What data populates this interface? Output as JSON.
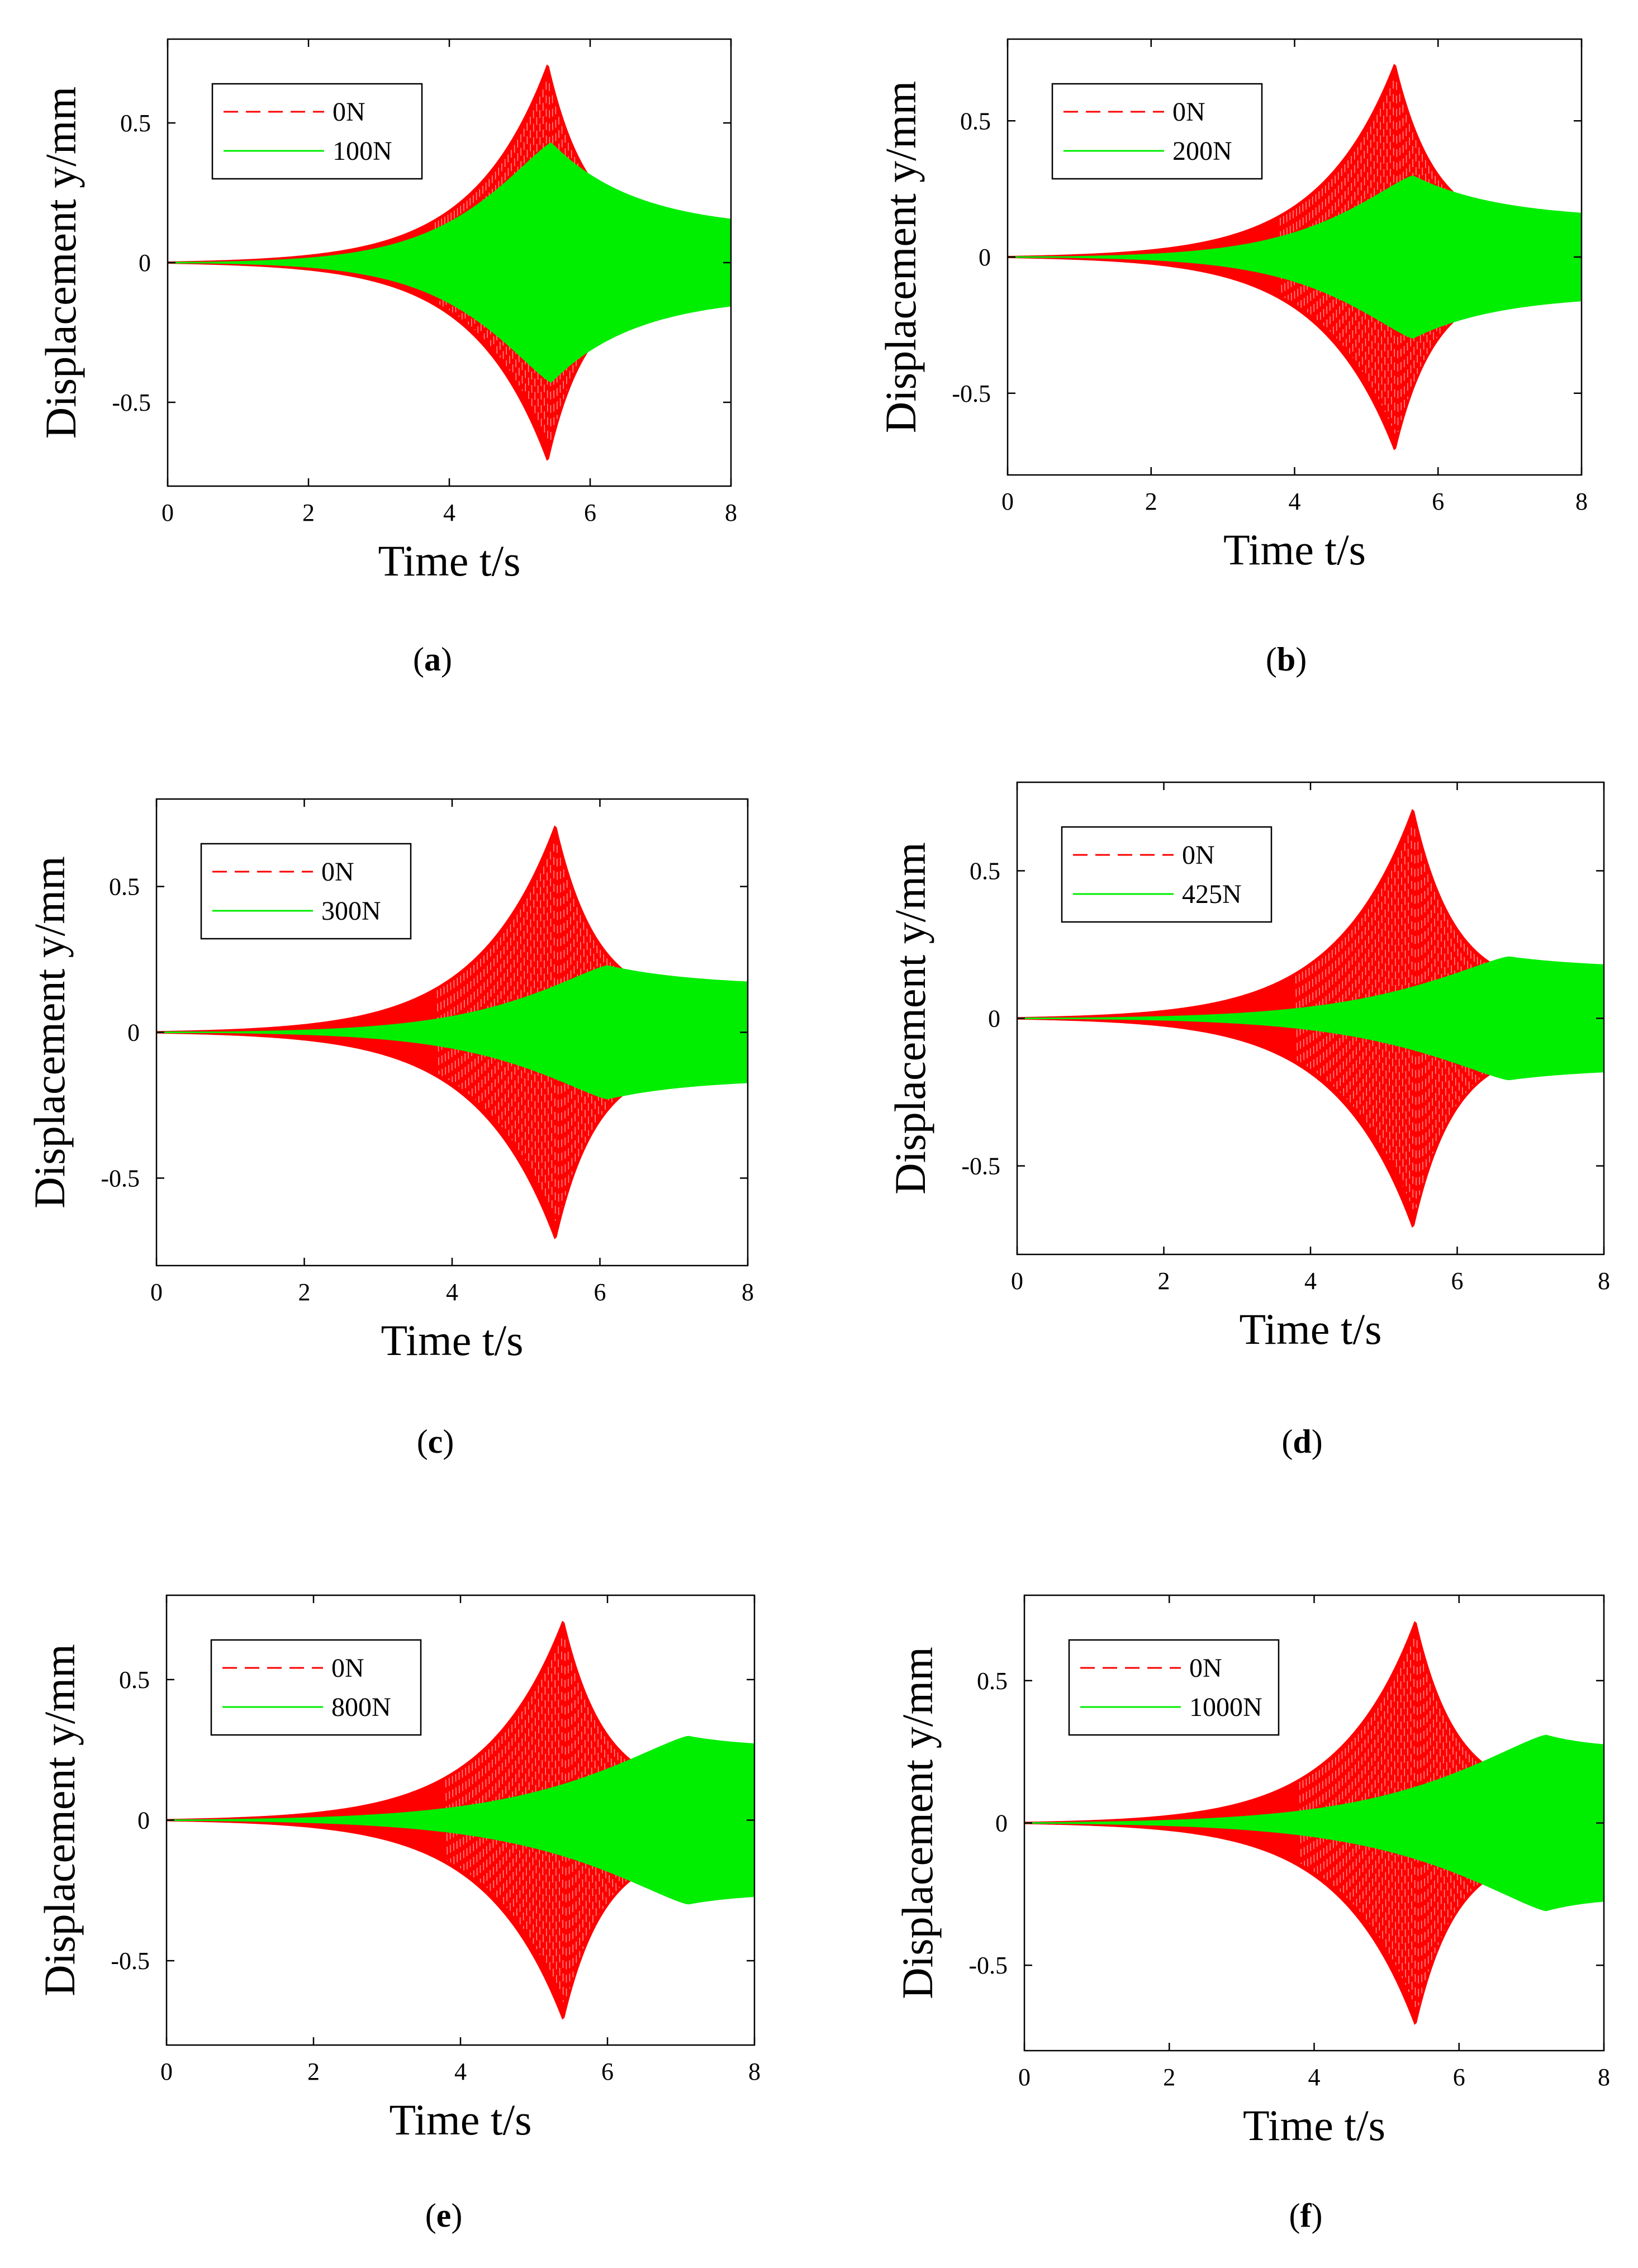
{
  "figure": {
    "panels": [
      {
        "caption_letter": "a",
        "caption_open": "(",
        "caption_close": ")"
      },
      {
        "caption_letter": "b",
        "caption_open": "(",
        "caption_close": ")"
      },
      {
        "caption_letter": "c",
        "caption_open": "(",
        "caption_close": ")"
      },
      {
        "caption_letter": "d",
        "caption_open": "(",
        "caption_close": ")"
      },
      {
        "caption_letter": "e",
        "caption_open": "(",
        "caption_close": ")"
      },
      {
        "caption_letter": "f",
        "caption_open": "(",
        "caption_close": ")"
      }
    ]
  },
  "colors": {
    "red": "#ff0000",
    "green": "#00ee00",
    "axis": "#000000"
  },
  "chart_data": [
    {
      "type": "line",
      "panel": "a",
      "xlabel": "Time t/s",
      "ylabel": "Displacement y/mm",
      "xlim": [
        0,
        8
      ],
      "ylim": [
        -0.8,
        0.8
      ],
      "xticks": [
        "0",
        "2",
        "4",
        "6",
        "8"
      ],
      "yticks": [
        "-0.5",
        "0",
        "0.5"
      ],
      "legend_position": "top-left",
      "series": [
        {
          "name": "0N",
          "style": "dashed",
          "color": "red",
          "peak_time": 5.4,
          "peak_amplitude": 0.72,
          "end_amplitude": 0.1
        },
        {
          "name": "100N",
          "style": "solid",
          "color": "green",
          "peak_time": 5.45,
          "peak_amplitude": 0.43,
          "end_amplitude": 0.12
        }
      ]
    },
    {
      "type": "line",
      "panel": "b",
      "xlabel": "Time t/s",
      "ylabel": "Displacement y/mm",
      "xlim": [
        0,
        8
      ],
      "ylim": [
        -0.8,
        0.8
      ],
      "xticks": [
        "0",
        "2",
        "4",
        "6",
        "8"
      ],
      "yticks": [
        "-0.5",
        "0",
        "0.5"
      ],
      "legend_position": "top-left",
      "series": [
        {
          "name": "0N",
          "style": "dashed",
          "color": "red",
          "peak_time": 5.4,
          "peak_amplitude": 0.72,
          "end_amplitude": 0.1
        },
        {
          "name": "200N",
          "style": "solid",
          "color": "green",
          "peak_time": 5.65,
          "peak_amplitude": 0.3,
          "end_amplitude": 0.14
        }
      ]
    },
    {
      "type": "line",
      "panel": "c",
      "xlabel": "Time t/s",
      "ylabel": "Displacement y/mm",
      "xlim": [
        0,
        8
      ],
      "ylim": [
        -0.8,
        0.8
      ],
      "xticks": [
        "0",
        "2",
        "4",
        "6",
        "8"
      ],
      "yticks": [
        "-0.5",
        "0",
        "0.5"
      ],
      "legend_position": "top-left",
      "series": [
        {
          "name": "0N",
          "style": "dashed",
          "color": "red",
          "peak_time": 5.4,
          "peak_amplitude": 0.72,
          "end_amplitude": 0.1
        },
        {
          "name": "300N",
          "style": "solid",
          "color": "green",
          "peak_time": 6.1,
          "peak_amplitude": 0.23,
          "end_amplitude": 0.16
        }
      ]
    },
    {
      "type": "line",
      "panel": "d",
      "xlabel": "Time t/s",
      "ylabel": "Displacement y/mm",
      "xlim": [
        0,
        8
      ],
      "ylim": [
        -0.8,
        0.8
      ],
      "xticks": [
        "0",
        "2",
        "4",
        "6",
        "8"
      ],
      "yticks": [
        "-0.5",
        "0",
        "0.5"
      ],
      "legend_position": "top-left",
      "series": [
        {
          "name": "0N",
          "style": "dashed",
          "color": "red",
          "peak_time": 5.4,
          "peak_amplitude": 0.72,
          "end_amplitude": 0.1
        },
        {
          "name": "425N",
          "style": "solid",
          "color": "green",
          "peak_time": 6.7,
          "peak_amplitude": 0.21,
          "end_amplitude": 0.17
        }
      ]
    },
    {
      "type": "line",
      "panel": "e",
      "xlabel": "Time t/s",
      "ylabel": "Displacement y/mm",
      "xlim": [
        0,
        8
      ],
      "ylim": [
        -0.8,
        0.8
      ],
      "xticks": [
        "0",
        "2",
        "4",
        "6",
        "8"
      ],
      "yticks": [
        "-0.5",
        "0",
        "0.5"
      ],
      "legend_position": "top-left",
      "series": [
        {
          "name": "0N",
          "style": "dashed",
          "color": "red",
          "peak_time": 5.4,
          "peak_amplitude": 0.72,
          "end_amplitude": 0.1
        },
        {
          "name": "800N",
          "style": "solid",
          "color": "green",
          "peak_time": 7.1,
          "peak_amplitude": 0.3,
          "end_amplitude": 0.26
        }
      ]
    },
    {
      "type": "line",
      "panel": "f",
      "xlabel": "Time t/s",
      "ylabel": "Displacement y/mm",
      "xlim": [
        0,
        8
      ],
      "ylim": [
        -0.8,
        0.8
      ],
      "xticks": [
        "0",
        "2",
        "4",
        "6",
        "8"
      ],
      "yticks": [
        "-0.5",
        "0",
        "0.5"
      ],
      "legend_position": "top-left",
      "series": [
        {
          "name": "0N",
          "style": "dashed",
          "color": "red",
          "peak_time": 5.4,
          "peak_amplitude": 0.72,
          "end_amplitude": 0.1
        },
        {
          "name": "1000N",
          "style": "solid",
          "color": "green",
          "peak_time": 7.2,
          "peak_amplitude": 0.31,
          "end_amplitude": 0.26
        }
      ]
    }
  ]
}
